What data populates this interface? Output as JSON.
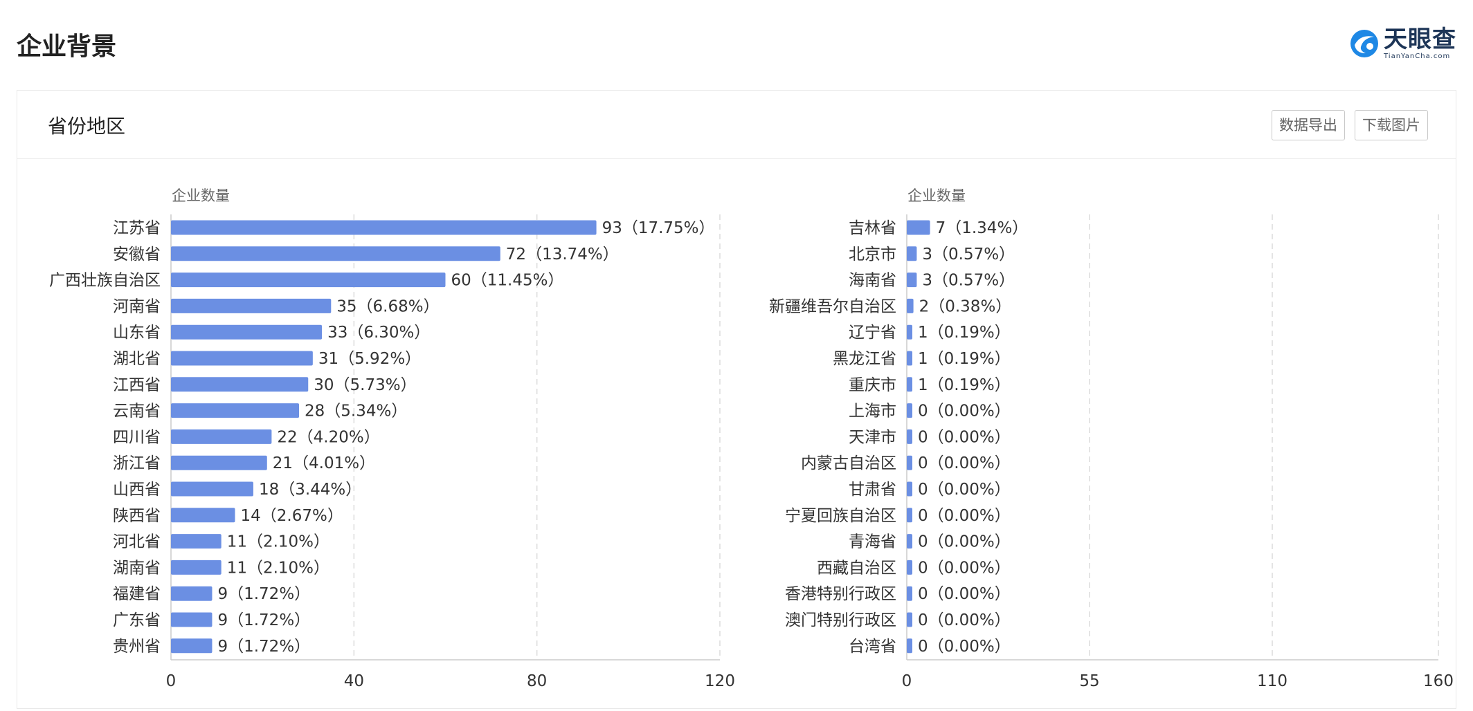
{
  "page_title": "企业背景",
  "logo": {
    "name_cn": "天眼查",
    "name_en": "TianYanCha.com"
  },
  "section_title": "省份地区",
  "toolbar": {
    "export_label": "数据导出",
    "download_label": "下载图片"
  },
  "colors": {
    "bar": "#6b8fe3",
    "grid": "#dcdcdc",
    "axis": "#cccccc",
    "text": "#333333",
    "muted": "#666666"
  },
  "chart_data": [
    {
      "type": "bar",
      "orientation": "horizontal",
      "xlabel": "企业数量",
      "xlim": [
        0,
        120
      ],
      "xticks": [
        0,
        40,
        80,
        120
      ],
      "grid": true,
      "categories": [
        "江苏省",
        "安徽省",
        "广西壮族自治区",
        "河南省",
        "山东省",
        "湖北省",
        "江西省",
        "云南省",
        "四川省",
        "浙江省",
        "山西省",
        "陕西省",
        "河北省",
        "湖南省",
        "福建省",
        "广东省",
        "贵州省"
      ],
      "values": [
        93,
        72,
        60,
        35,
        33,
        31,
        30,
        28,
        22,
        21,
        18,
        14,
        11,
        11,
        9,
        9,
        9
      ],
      "labels": [
        "93（17.75%）",
        "72（13.74%）",
        "60（11.45%）",
        "35（6.68%）",
        "33（6.30%）",
        "31（5.92%）",
        "30（5.73%）",
        "28（5.34%）",
        "22（4.20%）",
        "21（4.01%）",
        "18（3.44%）",
        "14（2.67%）",
        "11（2.10%）",
        "11（2.10%）",
        "9（1.72%）",
        "9（1.72%）",
        "9（1.72%）"
      ]
    },
    {
      "type": "bar",
      "orientation": "horizontal",
      "xlabel": "企业数量",
      "xlim": [
        0,
        160
      ],
      "xticks": [
        0,
        55,
        110,
        160
      ],
      "grid": true,
      "categories": [
        "吉林省",
        "北京市",
        "海南省",
        "新疆维吾尔自治区",
        "辽宁省",
        "黑龙江省",
        "重庆市",
        "上海市",
        "天津市",
        "内蒙古自治区",
        "甘肃省",
        "宁夏回族自治区",
        "青海省",
        "西藏自治区",
        "香港特别行政区",
        "澳门特别行政区",
        "台湾省"
      ],
      "values": [
        7,
        3,
        3,
        2,
        1,
        1,
        1,
        0,
        0,
        0,
        0,
        0,
        0,
        0,
        0,
        0,
        0
      ],
      "labels": [
        "7（1.34%）",
        "3（0.57%）",
        "3（0.57%）",
        "2（0.38%）",
        "1（0.19%）",
        "1（0.19%）",
        "1（0.19%）",
        "0（0.00%）",
        "0（0.00%）",
        "0（0.00%）",
        "0（0.00%）",
        "0（0.00%）",
        "0（0.00%）",
        "0（0.00%）",
        "0（0.00%）",
        "0（0.00%）",
        "0（0.00%）"
      ]
    }
  ]
}
